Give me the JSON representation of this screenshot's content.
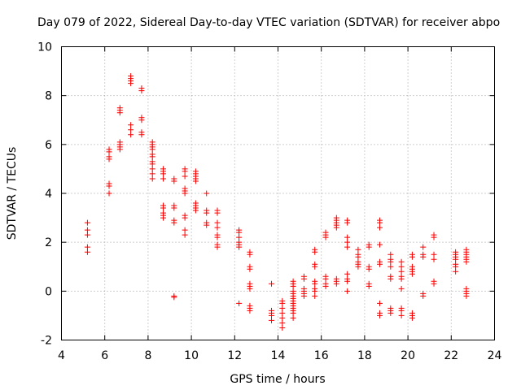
{
  "chart_data": {
    "type": "scatter",
    "title": "Day 079 of 2022, Sidereal Day-to-day VTEC variation (SDTVAR) for receiver abpo",
    "xlabel": "GPS time / hours",
    "ylabel": "SDTVAR / TECUs",
    "xlim": [
      4,
      24
    ],
    "ylim": [
      -2,
      10
    ],
    "xticks": [
      4,
      6,
      8,
      10,
      12,
      14,
      16,
      18,
      20,
      22,
      24
    ],
    "yticks": [
      -2,
      0,
      2,
      4,
      6,
      8,
      10
    ],
    "grid": true,
    "marker": "plus",
    "color": "#ff0000",
    "series": [
      {
        "name": "SDTVAR",
        "points": [
          [
            5.2,
            2.8
          ],
          [
            5.2,
            2.5
          ],
          [
            5.2,
            2.3
          ],
          [
            5.2,
            1.8
          ],
          [
            5.2,
            1.6
          ],
          [
            6.2,
            5.8
          ],
          [
            6.2,
            5.7
          ],
          [
            6.2,
            5.5
          ],
          [
            6.2,
            5.4
          ],
          [
            6.2,
            4.4
          ],
          [
            6.2,
            4.3
          ],
          [
            6.2,
            4.0
          ],
          [
            6.7,
            7.5
          ],
          [
            6.7,
            7.4
          ],
          [
            6.7,
            7.3
          ],
          [
            6.7,
            6.1
          ],
          [
            6.7,
            6.0
          ],
          [
            6.7,
            5.9
          ],
          [
            6.7,
            5.8
          ],
          [
            7.2,
            8.8
          ],
          [
            7.2,
            8.7
          ],
          [
            7.2,
            8.6
          ],
          [
            7.2,
            8.5
          ],
          [
            7.2,
            6.8
          ],
          [
            7.2,
            6.6
          ],
          [
            7.2,
            6.4
          ],
          [
            7.7,
            8.3
          ],
          [
            7.7,
            8.2
          ],
          [
            7.7,
            7.1
          ],
          [
            7.7,
            7.0
          ],
          [
            7.7,
            6.5
          ],
          [
            7.7,
            6.4
          ],
          [
            8.2,
            6.1
          ],
          [
            8.2,
            6.0
          ],
          [
            8.2,
            5.9
          ],
          [
            8.2,
            5.8
          ],
          [
            8.2,
            5.6
          ],
          [
            8.2,
            5.5
          ],
          [
            8.2,
            5.3
          ],
          [
            8.2,
            5.2
          ],
          [
            8.2,
            5.0
          ],
          [
            8.2,
            4.8
          ],
          [
            8.2,
            4.6
          ],
          [
            8.7,
            5.0
          ],
          [
            8.7,
            4.9
          ],
          [
            8.7,
            4.8
          ],
          [
            8.7,
            4.6
          ],
          [
            8.7,
            3.5
          ],
          [
            8.7,
            3.4
          ],
          [
            8.7,
            3.2
          ],
          [
            8.7,
            3.1
          ],
          [
            8.7,
            3.0
          ],
          [
            9.2,
            4.6
          ],
          [
            9.2,
            4.5
          ],
          [
            9.2,
            3.5
          ],
          [
            9.2,
            3.4
          ],
          [
            9.2,
            2.9
          ],
          [
            9.2,
            2.8
          ],
          [
            9.2,
            -0.2
          ],
          [
            9.2,
            -0.25
          ],
          [
            9.7,
            5.0
          ],
          [
            9.7,
            4.9
          ],
          [
            9.7,
            4.7
          ],
          [
            9.7,
            4.2
          ],
          [
            9.7,
            4.1
          ],
          [
            9.7,
            4.0
          ],
          [
            9.7,
            3.1
          ],
          [
            9.7,
            3.0
          ],
          [
            9.7,
            2.5
          ],
          [
            9.7,
            2.3
          ],
          [
            10.2,
            4.9
          ],
          [
            10.2,
            4.8
          ],
          [
            10.2,
            4.7
          ],
          [
            10.2,
            4.6
          ],
          [
            10.2,
            4.5
          ],
          [
            10.2,
            3.6
          ],
          [
            10.2,
            3.5
          ],
          [
            10.2,
            3.4
          ],
          [
            10.2,
            3.3
          ],
          [
            10.7,
            4.0
          ],
          [
            10.7,
            3.3
          ],
          [
            10.7,
            3.2
          ],
          [
            10.7,
            2.8
          ],
          [
            10.7,
            2.7
          ],
          [
            11.2,
            3.3
          ],
          [
            11.2,
            3.2
          ],
          [
            11.2,
            2.8
          ],
          [
            11.2,
            2.6
          ],
          [
            11.2,
            2.3
          ],
          [
            11.2,
            2.2
          ],
          [
            11.2,
            1.9
          ],
          [
            11.2,
            1.8
          ],
          [
            12.2,
            2.5
          ],
          [
            12.2,
            2.4
          ],
          [
            12.2,
            2.2
          ],
          [
            12.2,
            2.0
          ],
          [
            12.2,
            1.9
          ],
          [
            12.2,
            1.8
          ],
          [
            12.2,
            -0.5
          ],
          [
            12.7,
            1.6
          ],
          [
            12.7,
            1.5
          ],
          [
            12.7,
            1.0
          ],
          [
            12.7,
            0.9
          ],
          [
            12.7,
            0.3
          ],
          [
            12.7,
            0.2
          ],
          [
            12.7,
            0.1
          ],
          [
            12.7,
            -0.6
          ],
          [
            12.7,
            -0.7
          ],
          [
            12.7,
            -0.8
          ],
          [
            13.7,
            0.3
          ],
          [
            13.7,
            -0.8
          ],
          [
            13.7,
            -0.9
          ],
          [
            13.7,
            -1.0
          ],
          [
            13.7,
            -1.2
          ],
          [
            14.2,
            -0.4
          ],
          [
            14.2,
            -0.5
          ],
          [
            14.2,
            -0.7
          ],
          [
            14.2,
            -0.9
          ],
          [
            14.2,
            -1.1
          ],
          [
            14.2,
            -1.3
          ],
          [
            14.2,
            -1.5
          ],
          [
            14.7,
            0.4
          ],
          [
            14.7,
            0.3
          ],
          [
            14.7,
            0.2
          ],
          [
            14.7,
            0.0
          ],
          [
            14.7,
            -0.1
          ],
          [
            14.7,
            -0.2
          ],
          [
            14.7,
            -0.3
          ],
          [
            14.7,
            -0.4
          ],
          [
            14.7,
            -0.5
          ],
          [
            14.7,
            -0.6
          ],
          [
            14.7,
            -0.7
          ],
          [
            14.7,
            -0.8
          ],
          [
            14.7,
            -0.9
          ],
          [
            14.7,
            -1.1
          ],
          [
            15.2,
            0.6
          ],
          [
            15.2,
            0.5
          ],
          [
            15.2,
            0.1
          ],
          [
            15.2,
            0.0
          ],
          [
            15.2,
            -0.1
          ],
          [
            15.2,
            -0.2
          ],
          [
            15.7,
            1.7
          ],
          [
            15.7,
            1.6
          ],
          [
            15.7,
            1.1
          ],
          [
            15.7,
            1.0
          ],
          [
            15.7,
            0.4
          ],
          [
            15.7,
            0.3
          ],
          [
            15.7,
            0.1
          ],
          [
            15.7,
            0.0
          ],
          [
            15.7,
            -0.2
          ],
          [
            16.2,
            2.4
          ],
          [
            16.2,
            2.3
          ],
          [
            16.2,
            2.2
          ],
          [
            16.2,
            0.6
          ],
          [
            16.2,
            0.5
          ],
          [
            16.2,
            0.3
          ],
          [
            16.2,
            0.2
          ],
          [
            16.7,
            3.0
          ],
          [
            16.7,
            2.9
          ],
          [
            16.7,
            2.8
          ],
          [
            16.7,
            2.7
          ],
          [
            16.7,
            2.6
          ],
          [
            16.7,
            0.5
          ],
          [
            16.7,
            0.4
          ],
          [
            16.7,
            0.3
          ],
          [
            17.2,
            2.9
          ],
          [
            17.2,
            2.8
          ],
          [
            17.2,
            2.2
          ],
          [
            17.2,
            2.0
          ],
          [
            17.2,
            1.8
          ],
          [
            17.2,
            0.7
          ],
          [
            17.2,
            0.5
          ],
          [
            17.2,
            0.4
          ],
          [
            17.2,
            0.0
          ],
          [
            17.7,
            1.7
          ],
          [
            17.7,
            1.5
          ],
          [
            17.7,
            1.4
          ],
          [
            17.7,
            1.2
          ],
          [
            17.7,
            1.1
          ],
          [
            17.7,
            1.0
          ],
          [
            18.2,
            1.9
          ],
          [
            18.2,
            1.8
          ],
          [
            18.2,
            1.0
          ],
          [
            18.2,
            0.9
          ],
          [
            18.2,
            0.3
          ],
          [
            18.2,
            0.2
          ],
          [
            18.7,
            2.9
          ],
          [
            18.7,
            2.8
          ],
          [
            18.7,
            2.6
          ],
          [
            18.7,
            1.9
          ],
          [
            18.7,
            1.2
          ],
          [
            18.7,
            1.1
          ],
          [
            18.7,
            -0.5
          ],
          [
            18.7,
            -0.9
          ],
          [
            18.7,
            -1.0
          ],
          [
            19.2,
            1.5
          ],
          [
            19.2,
            1.3
          ],
          [
            19.2,
            1.2
          ],
          [
            19.2,
            1.0
          ],
          [
            19.2,
            0.6
          ],
          [
            19.2,
            0.5
          ],
          [
            19.2,
            -0.7
          ],
          [
            19.2,
            -0.8
          ],
          [
            19.2,
            -0.9
          ],
          [
            19.7,
            1.2
          ],
          [
            19.7,
            1.0
          ],
          [
            19.7,
            0.8
          ],
          [
            19.7,
            0.6
          ],
          [
            19.7,
            0.5
          ],
          [
            19.7,
            0.1
          ],
          [
            19.7,
            -0.7
          ],
          [
            19.7,
            -0.8
          ],
          [
            19.7,
            -1.0
          ],
          [
            20.2,
            1.5
          ],
          [
            20.2,
            1.4
          ],
          [
            20.2,
            1.0
          ],
          [
            20.2,
            0.9
          ],
          [
            20.2,
            0.8
          ],
          [
            20.2,
            0.7
          ],
          [
            20.2,
            -0.9
          ],
          [
            20.2,
            -1.0
          ],
          [
            20.2,
            -1.1
          ],
          [
            20.7,
            1.8
          ],
          [
            20.7,
            1.5
          ],
          [
            20.7,
            1.4
          ],
          [
            20.7,
            -0.1
          ],
          [
            20.7,
            -0.2
          ],
          [
            21.2,
            2.3
          ],
          [
            21.2,
            2.2
          ],
          [
            21.2,
            1.5
          ],
          [
            21.2,
            1.3
          ],
          [
            21.2,
            0.4
          ],
          [
            21.2,
            0.3
          ],
          [
            22.2,
            1.6
          ],
          [
            22.2,
            1.5
          ],
          [
            22.2,
            1.4
          ],
          [
            22.2,
            1.3
          ],
          [
            22.2,
            1.1
          ],
          [
            22.2,
            1.0
          ],
          [
            22.2,
            0.8
          ],
          [
            22.7,
            1.7
          ],
          [
            22.7,
            1.6
          ],
          [
            22.7,
            1.5
          ],
          [
            22.7,
            1.4
          ],
          [
            22.7,
            1.3
          ],
          [
            22.7,
            1.2
          ],
          [
            22.7,
            0.1
          ],
          [
            22.7,
            0.0
          ],
          [
            22.7,
            -0.1
          ],
          [
            22.7,
            -0.2
          ]
        ]
      }
    ]
  }
}
